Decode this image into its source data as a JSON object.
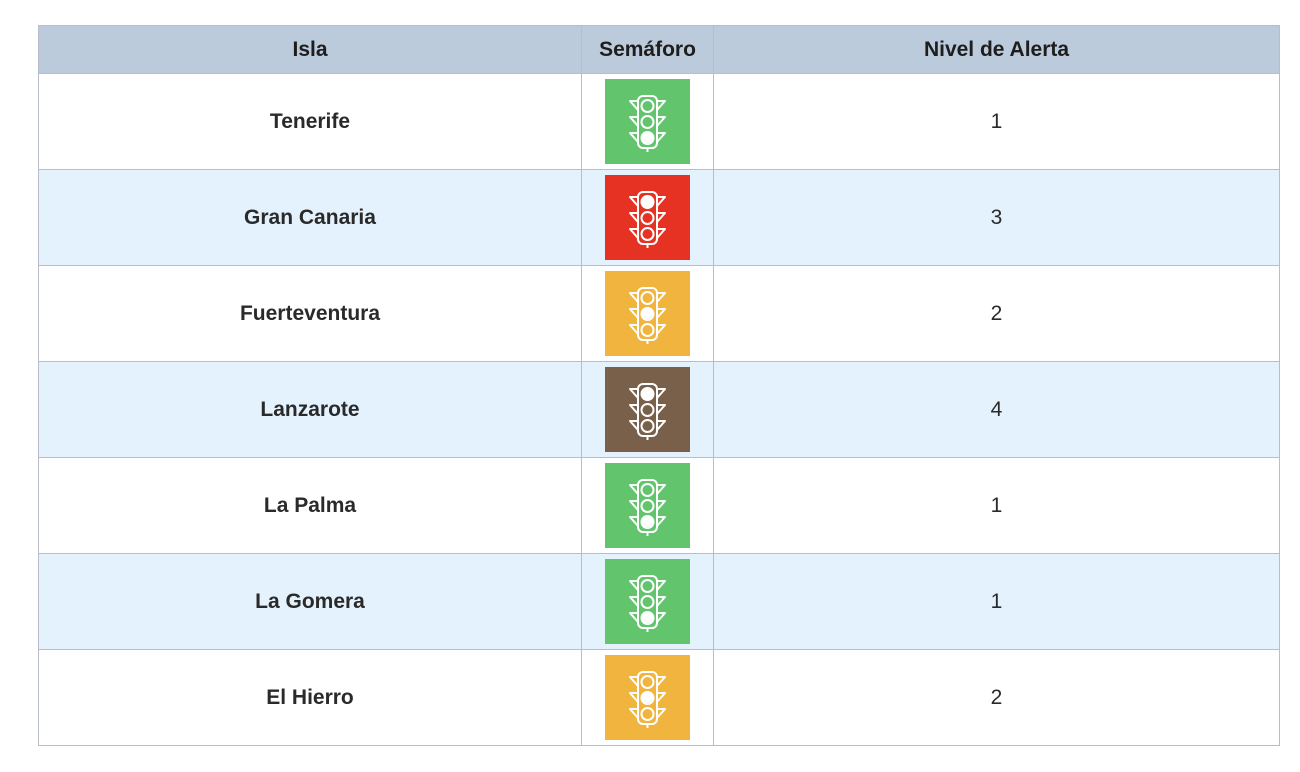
{
  "table": {
    "headers": {
      "isla": "Isla",
      "semaforo": "Semáforo",
      "nivel": "Nivel de Alerta"
    },
    "rows": [
      {
        "isla": "Tenerife",
        "nivel": "1",
        "color": "#62c56d",
        "active_light": "bottom",
        "icon": "traffic-light-icon"
      },
      {
        "isla": "Gran Canaria",
        "nivel": "3",
        "color": "#e63223",
        "active_light": "top",
        "icon": "traffic-light-icon"
      },
      {
        "isla": "Fuerteventura",
        "nivel": "2",
        "color": "#f1b43f",
        "active_light": "middle",
        "icon": "traffic-light-icon"
      },
      {
        "isla": "Lanzarote",
        "nivel": "4",
        "color": "#78604b",
        "active_light": "top",
        "icon": "traffic-light-icon"
      },
      {
        "isla": "La Palma",
        "nivel": "1",
        "color": "#62c56d",
        "active_light": "bottom",
        "icon": "traffic-light-icon"
      },
      {
        "isla": "La Gomera",
        "nivel": "1",
        "color": "#62c56d",
        "active_light": "bottom",
        "icon": "traffic-light-icon"
      },
      {
        "isla": "El Hierro",
        "nivel": "2",
        "color": "#f1b43f",
        "active_light": "middle",
        "icon": "traffic-light-icon"
      }
    ]
  },
  "colors": {
    "header_bg": "#bccbdb",
    "row_alt_bg": "#e3f2fc",
    "border": "#b8bec6"
  }
}
